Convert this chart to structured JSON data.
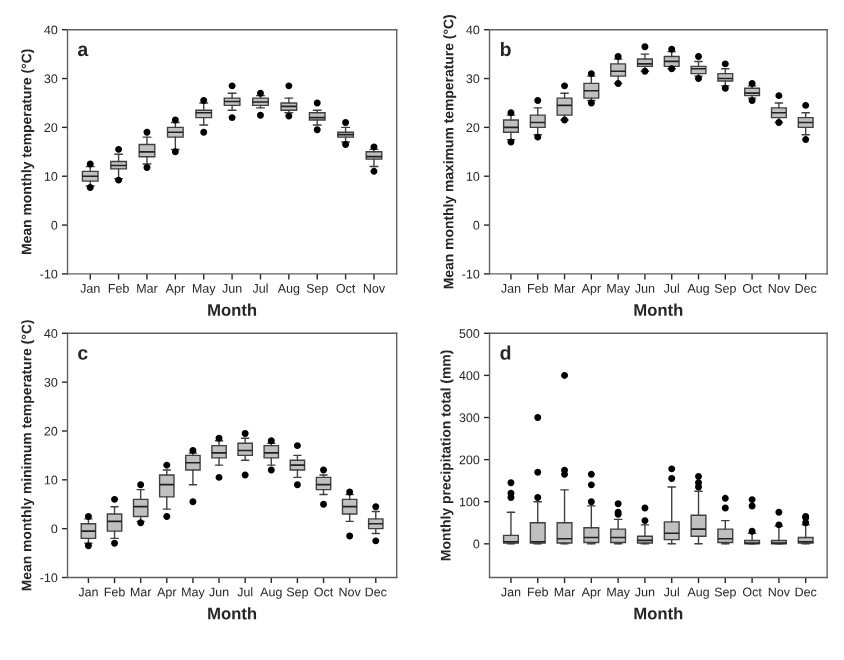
{
  "chart_data": [
    {
      "type": "box",
      "xlabel": "Month",
      "ylabel": "Mean monthly temperature (°C)",
      "annotations": [
        "a"
      ],
      "ylim": [
        -10,
        40
      ],
      "yticks": [
        -10,
        0,
        10,
        20,
        30,
        40
      ],
      "grid": false,
      "legend": false,
      "color": "#c0c0c0",
      "categories": [
        "Jan",
        "Feb",
        "Mar",
        "Apr",
        "May",
        "Jun",
        "Jul",
        "Aug",
        "Sep",
        "Oct",
        "Nov"
      ],
      "boxes": [
        {
          "low": 8,
          "q1": 9,
          "median": 10,
          "q3": 11,
          "high": 12,
          "outliers": [
            7.7,
            12.5
          ]
        },
        {
          "low": 9.5,
          "q1": 11.5,
          "median": 12.2,
          "q3": 13,
          "high": 14.5,
          "outliers": [
            9.2,
            15.5
          ]
        },
        {
          "low": 12.5,
          "q1": 14,
          "median": 15,
          "q3": 16.5,
          "high": 18,
          "outliers": [
            11.8,
            19
          ]
        },
        {
          "low": 15.5,
          "q1": 18,
          "median": 19,
          "q3": 20,
          "high": 21,
          "outliers": [
            15,
            21.5
          ]
        },
        {
          "low": 20.5,
          "q1": 22,
          "median": 23,
          "q3": 23.5,
          "high": 25,
          "outliers": [
            19,
            25.5
          ]
        },
        {
          "low": 23.5,
          "q1": 24.5,
          "median": 25.3,
          "q3": 26,
          "high": 27,
          "outliers": [
            22,
            28.5
          ]
        },
        {
          "low": 24,
          "q1": 24.5,
          "median": 25.2,
          "q3": 26,
          "high": 26.5,
          "outliers": [
            22.5,
            27
          ]
        },
        {
          "low": 23,
          "q1": 23.5,
          "median": 24.3,
          "q3": 25,
          "high": 26,
          "outliers": [
            22.3,
            28.5
          ]
        },
        {
          "low": 20.5,
          "q1": 21.5,
          "median": 22,
          "q3": 23,
          "high": 23.5,
          "outliers": [
            19.5,
            25
          ]
        },
        {
          "low": 17,
          "q1": 18,
          "median": 18.5,
          "q3": 19,
          "high": 20,
          "outliers": [
            16.5,
            21
          ]
        },
        {
          "low": 12,
          "q1": 13.5,
          "median": 14,
          "q3": 15,
          "high": 15.5,
          "outliers": [
            11,
            16
          ]
        }
      ]
    },
    {
      "type": "box",
      "xlabel": "Month",
      "ylabel": "Mean monthly maximum temperature (°C)",
      "annotations": [
        "b"
      ],
      "ylim": [
        -10,
        40
      ],
      "yticks": [
        -10,
        0,
        10,
        20,
        30,
        40
      ],
      "grid": false,
      "legend": false,
      "color": "#c0c0c0",
      "categories": [
        "Jan",
        "Feb",
        "Mar",
        "Apr",
        "May",
        "Jun",
        "Jul",
        "Aug",
        "Sep",
        "Oct",
        "Nov",
        "Dec"
      ],
      "boxes": [
        {
          "low": 17.5,
          "q1": 19,
          "median": 20,
          "q3": 21.5,
          "high": 22.5,
          "outliers": [
            17,
            23
          ]
        },
        {
          "low": 18.5,
          "q1": 20,
          "median": 21,
          "q3": 22.5,
          "high": 24,
          "outliers": [
            18,
            25.5
          ]
        },
        {
          "low": 21.5,
          "q1": 22.5,
          "median": 24.5,
          "q3": 26,
          "high": 27,
          "outliers": [
            21.5,
            28.5
          ]
        },
        {
          "low": 25.5,
          "q1": 26,
          "median": 27.5,
          "q3": 29,
          "high": 30.5,
          "outliers": [
            25,
            31
          ]
        },
        {
          "low": 29,
          "q1": 30.5,
          "median": 31.5,
          "q3": 33,
          "high": 34,
          "outliers": [
            29,
            34.5
          ]
        },
        {
          "low": 31.5,
          "q1": 32.5,
          "median": 33,
          "q3": 34,
          "high": 35,
          "outliers": [
            31.5,
            36.5
          ]
        },
        {
          "low": 32,
          "q1": 32.5,
          "median": 33.5,
          "q3": 34.5,
          "high": 35.5,
          "outliers": [
            32,
            36
          ]
        },
        {
          "low": 30.5,
          "q1": 31,
          "median": 32,
          "q3": 32.5,
          "high": 33.5,
          "outliers": [
            30,
            34.5
          ]
        },
        {
          "low": 28.5,
          "q1": 29.5,
          "median": 30,
          "q3": 31,
          "high": 32,
          "outliers": [
            28,
            33
          ]
        },
        {
          "low": 26,
          "q1": 26.5,
          "median": 27,
          "q3": 28,
          "high": 28.5,
          "outliers": [
            25.5,
            29
          ]
        },
        {
          "low": 21,
          "q1": 22,
          "median": 23,
          "q3": 24,
          "high": 25,
          "outliers": [
            21,
            26.5
          ]
        },
        {
          "low": 18.5,
          "q1": 20,
          "median": 21,
          "q3": 22,
          "high": 23,
          "outliers": [
            17.5,
            24.5
          ]
        }
      ]
    },
    {
      "type": "box",
      "xlabel": "Month",
      "ylabel": "Mean monthly minimum temperature (°C)",
      "annotations": [
        "c"
      ],
      "ylim": [
        -10,
        40
      ],
      "yticks": [
        -10,
        0,
        10,
        20,
        30,
        40
      ],
      "grid": false,
      "legend": false,
      "color": "#c0c0c0",
      "categories": [
        "Jan",
        "Feb",
        "Mar",
        "Apr",
        "May",
        "Jun",
        "Jul",
        "Aug",
        "Sep",
        "Oct",
        "Nov",
        "Dec"
      ],
      "boxes": [
        {
          "low": -3,
          "q1": -2,
          "median": -0.5,
          "q3": 1,
          "high": 2,
          "outliers": [
            -3.5,
            2.5
          ]
        },
        {
          "low": -2,
          "q1": -0.5,
          "median": 1.5,
          "q3": 3,
          "high": 4.5,
          "outliers": [
            -3,
            6
          ]
        },
        {
          "low": 1.5,
          "q1": 2.5,
          "median": 4.5,
          "q3": 6,
          "high": 8,
          "outliers": [
            1.2,
            9
          ]
        },
        {
          "low": 4,
          "q1": 6.5,
          "median": 9,
          "q3": 11,
          "high": 12,
          "outliers": [
            2.5,
            13
          ]
        },
        {
          "low": 9,
          "q1": 12,
          "median": 13.5,
          "q3": 15,
          "high": 15.5,
          "outliers": [
            5.5,
            16
          ]
        },
        {
          "low": 13,
          "q1": 14.5,
          "median": 15.5,
          "q3": 17,
          "high": 18,
          "outliers": [
            10.5,
            18.5
          ]
        },
        {
          "low": 14,
          "q1": 15,
          "median": 16,
          "q3": 17.5,
          "high": 18.5,
          "outliers": [
            11,
            19.5
          ]
        },
        {
          "low": 13,
          "q1": 14.5,
          "median": 15.5,
          "q3": 17,
          "high": 17.5,
          "outliers": [
            12,
            18
          ]
        },
        {
          "low": 10.5,
          "q1": 12,
          "median": 13,
          "q3": 14,
          "high": 15,
          "outliers": [
            9,
            17
          ]
        },
        {
          "low": 7,
          "q1": 8,
          "median": 9,
          "q3": 10.5,
          "high": 11,
          "outliers": [
            5,
            12
          ]
        },
        {
          "low": 1.5,
          "q1": 3,
          "median": 4.5,
          "q3": 6,
          "high": 7,
          "outliers": [
            -1.5,
            7.5
          ]
        },
        {
          "low": -1,
          "q1": 0,
          "median": 1,
          "q3": 2,
          "high": 3.5,
          "outliers": [
            -2.5,
            4.5
          ]
        }
      ]
    },
    {
      "type": "box",
      "xlabel": "Month",
      "ylabel": "Monthly precipitation total (mm)",
      "annotations": [
        "d"
      ],
      "ylim": [
        -80,
        500
      ],
      "yticks": [
        0,
        100,
        200,
        300,
        400,
        500
      ],
      "grid": false,
      "legend": false,
      "color": "#c0c0c0",
      "categories": [
        "Jan",
        "Feb",
        "Mar",
        "Apr",
        "May",
        "Jun",
        "Jul",
        "Aug",
        "Sep",
        "Oct",
        "Nov",
        "Dec"
      ],
      "boxes": [
        {
          "low": 0,
          "q1": 2,
          "median": 5,
          "q3": 20,
          "high": 75,
          "outliers": [
            110,
            120,
            145
          ]
        },
        {
          "low": 0,
          "q1": 2,
          "median": 5,
          "q3": 50,
          "high": 100,
          "outliers": [
            110,
            170,
            300
          ]
        },
        {
          "low": 0,
          "q1": 2,
          "median": 12,
          "q3": 50,
          "high": 128,
          "outliers": [
            165,
            175,
            400
          ]
        },
        {
          "low": 0,
          "q1": 3,
          "median": 15,
          "q3": 38,
          "high": 90,
          "outliers": [
            100,
            140,
            165
          ]
        },
        {
          "low": 0,
          "q1": 3,
          "median": 15,
          "q3": 35,
          "high": 58,
          "outliers": [
            70,
            75,
            95
          ]
        },
        {
          "low": 0,
          "q1": 2,
          "median": 8,
          "q3": 18,
          "high": 45,
          "outliers": [
            55,
            85
          ]
        },
        {
          "low": 0,
          "q1": 10,
          "median": 25,
          "q3": 52,
          "high": 135,
          "outliers": [
            155,
            178
          ]
        },
        {
          "low": 0,
          "q1": 18,
          "median": 35,
          "q3": 68,
          "high": 125,
          "outliers": [
            135,
            145,
            160
          ]
        },
        {
          "low": 0,
          "q1": 3,
          "median": 12,
          "q3": 35,
          "high": 55,
          "outliers": [
            85,
            108
          ]
        },
        {
          "low": 0,
          "q1": 0,
          "median": 2,
          "q3": 8,
          "high": 25,
          "outliers": [
            30,
            90,
            105
          ]
        },
        {
          "low": 0,
          "q1": 0,
          "median": 2,
          "q3": 8,
          "high": 42,
          "outliers": [
            45,
            75
          ]
        },
        {
          "low": 0,
          "q1": 2,
          "median": 5,
          "q3": 15,
          "high": 45,
          "outliers": [
            50,
            62,
            65
          ]
        }
      ]
    }
  ]
}
